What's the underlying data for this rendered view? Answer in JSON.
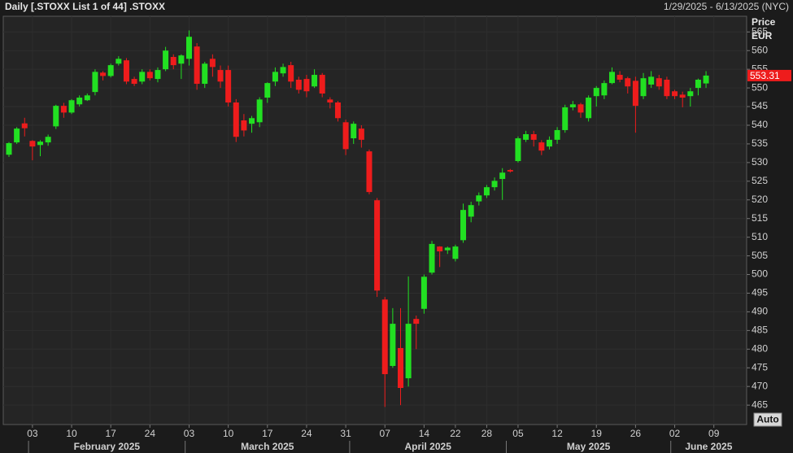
{
  "chart_data": {
    "type": "candlestick",
    "title": "Daily [.STOXX List 1 of 44] .STOXX",
    "date_range": "1/29/2025 - 6/13/2025 (NYC)",
    "y_axis_label": "Price",
    "y_axis_unit": "EUR",
    "auto_button": "Auto",
    "up_color": "#22e022",
    "down_color": "#ee1c1c",
    "grid": true,
    "categories": [
      "2025-01-29",
      "2025-01-30",
      "2025-01-31",
      "2025-02-03",
      "2025-02-04",
      "2025-02-05",
      "2025-02-06",
      "2025-02-07",
      "2025-02-10",
      "2025-02-11",
      "2025-02-12",
      "2025-02-13",
      "2025-02-14",
      "2025-02-17",
      "2025-02-18",
      "2025-02-19",
      "2025-02-20",
      "2025-02-21",
      "2025-02-24",
      "2025-02-25",
      "2025-02-26",
      "2025-02-27",
      "2025-02-28",
      "2025-03-03",
      "2025-03-04",
      "2025-03-05",
      "2025-03-06",
      "2025-03-07",
      "2025-03-10",
      "2025-03-11",
      "2025-03-12",
      "2025-03-13",
      "2025-03-14",
      "2025-03-17",
      "2025-03-18",
      "2025-03-19",
      "2025-03-20",
      "2025-03-21",
      "2025-03-24",
      "2025-03-25",
      "2025-03-26",
      "2025-03-27",
      "2025-03-28",
      "2025-03-31",
      "2025-04-01",
      "2025-04-02",
      "2025-04-03",
      "2025-04-04",
      "2025-04-07",
      "2025-04-08",
      "2025-04-09",
      "2025-04-10",
      "2025-04-11",
      "2025-04-14",
      "2025-04-15",
      "2025-04-16",
      "2025-04-17",
      "2025-04-22",
      "2025-04-23",
      "2025-04-24",
      "2025-04-25",
      "2025-04-28",
      "2025-04-29",
      "2025-04-30",
      "2025-05-02",
      "2025-05-05",
      "2025-05-06",
      "2025-05-07",
      "2025-05-08",
      "2025-05-09",
      "2025-05-12",
      "2025-05-13",
      "2025-05-14",
      "2025-05-15",
      "2025-05-16",
      "2025-05-19",
      "2025-05-20",
      "2025-05-21",
      "2025-05-22",
      "2025-05-23",
      "2025-05-26",
      "2025-05-27",
      "2025-05-28",
      "2025-05-29",
      "2025-05-30",
      "2025-06-02",
      "2025-06-03",
      "2025-06-04",
      "2025-06-05",
      "2025-06-06"
    ],
    "open": [
      532.1,
      535.4,
      540.5,
      535.8,
      534.7,
      535.4,
      539.7,
      545.2,
      543.4,
      545.6,
      546.7,
      548.9,
      554.1,
      553.2,
      556.5,
      557.4,
      552.4,
      551.7,
      554.3,
      552.4,
      555.0,
      558.3,
      556.5,
      557.8,
      561.1,
      551.1,
      557.8,
      554.8,
      554.8,
      546.1,
      541.3,
      540.4,
      540.8,
      547.4,
      551.7,
      553.9,
      556.1,
      552.2,
      552.4,
      550.4,
      553.5,
      546.9,
      546.1,
      540.8,
      536.5,
      539.1,
      533.0,
      519.9,
      493.3,
      475.5,
      480.3,
      472.2,
      488.1,
      490.8,
      500.5,
      507.5,
      506.5,
      504.2,
      509.2,
      515.5,
      519.6,
      521.2,
      523.4,
      525.6,
      528.0,
      530.4,
      536.1,
      537.6,
      535.4,
      534.3,
      536.1,
      538.7,
      544.8,
      545.6,
      541.9,
      547.8,
      548.0,
      551.3,
      553.5,
      552.6,
      551.9,
      547.8,
      550.9,
      552.6,
      552.2,
      549.1,
      548.2,
      547.8,
      550.0,
      551.2
    ],
    "high": [
      535.5,
      539.5,
      542,
      536,
      536,
      537.5,
      545.5,
      546,
      547,
      548,
      548.5,
      555,
      554.5,
      556.5,
      558.5,
      558,
      553,
      555,
      555,
      555.5,
      561,
      559,
      559,
      565.4,
      562,
      557,
      559,
      556,
      556,
      547,
      543,
      542.5,
      547.5,
      551.5,
      555.5,
      556.5,
      557,
      553,
      553.5,
      555,
      554,
      547.5,
      546.5,
      541.5,
      541,
      540,
      533.5,
      520.5,
      494,
      491,
      491,
      499.5,
      489,
      500,
      509,
      507.6,
      507.5,
      508,
      519,
      519.5,
      522,
      524,
      526,
      528.5,
      528.3,
      537,
      538.5,
      538.5,
      536,
      537,
      539.5,
      545.5,
      546.5,
      546,
      548,
      550.5,
      552,
      555.5,
      554.5,
      553,
      553,
      554,
      554.5,
      553.5,
      553,
      549.5,
      549,
      550,
      552.5,
      554.5
    ],
    "low": [
      531.5,
      535,
      537,
      530.6,
      531.7,
      534.5,
      539,
      542,
      543,
      545,
      546.5,
      548,
      552,
      552.8,
      556,
      551,
      550.5,
      551,
      552,
      551.5,
      554.5,
      555,
      552.4,
      556,
      549.5,
      550,
      553,
      550,
      545,
      535.5,
      537,
      538,
      539.5,
      546,
      550.5,
      553,
      550,
      548.5,
      547.5,
      550,
      547.5,
      544.5,
      541,
      532,
      535,
      534,
      521.5,
      494,
      464.5,
      475,
      465,
      470,
      480,
      489.5,
      500,
      502,
      505.5,
      503.5,
      508.5,
      514,
      518.5,
      520.5,
      522.5,
      520,
      527.3,
      530,
      535.5,
      534.3,
      532,
      533.5,
      535,
      538,
      544,
      542,
      541,
      545,
      547,
      551,
      551.5,
      548.5,
      538,
      547,
      550,
      549.5,
      547,
      547,
      544.8,
      545,
      548,
      550
    ],
    "close": [
      535.2,
      539.1,
      539.2,
      534.3,
      535.6,
      536.9,
      545.2,
      543.4,
      546.7,
      547.4,
      548.0,
      554.3,
      553.2,
      556.1,
      557.8,
      551.7,
      551.1,
      554.3,
      552.6,
      554.8,
      560.0,
      556.1,
      558.7,
      563.7,
      551.1,
      556.5,
      555.6,
      551.7,
      546.1,
      536.9,
      538.6,
      541.9,
      546.9,
      551.3,
      554.3,
      555.6,
      551.7,
      549.5,
      549.1,
      553.5,
      548.5,
      546.1,
      541.9,
      533.6,
      540.4,
      536.1,
      522.1,
      495.7,
      473.3,
      486.8,
      469.6,
      486.8,
      486.8,
      499.4,
      508.2,
      506.2,
      507.2,
      507.5,
      517.3,
      518.6,
      521.2,
      523.4,
      525.1,
      527.3,
      527.6,
      536.5,
      537.6,
      536.1,
      533.2,
      536.1,
      538.7,
      544.8,
      545.6,
      543.4,
      547.4,
      550.0,
      551.3,
      554.3,
      552.2,
      550.4,
      545.2,
      552.6,
      553.0,
      550.4,
      547.8,
      547.8,
      547.4,
      549.1,
      552.2,
      553.31
    ],
    "ylim": [
      459.8,
      569.2
    ],
    "yticks": [
      465,
      470,
      475,
      480,
      485,
      490,
      495,
      500,
      505,
      510,
      515,
      520,
      525,
      530,
      535,
      540,
      545,
      550,
      555,
      560,
      565
    ],
    "xticks": [
      {
        "value": "2025-02-03",
        "label": "03"
      },
      {
        "value": "2025-02-10",
        "label": "10"
      },
      {
        "value": "2025-02-17",
        "label": "17"
      },
      {
        "value": "2025-02-24",
        "label": "24"
      },
      {
        "value": "2025-03-03",
        "label": "03"
      },
      {
        "value": "2025-03-10",
        "label": "10"
      },
      {
        "value": "2025-03-17",
        "label": "17"
      },
      {
        "value": "2025-03-24",
        "label": "24"
      },
      {
        "value": "2025-03-31",
        "label": "31"
      },
      {
        "value": "2025-04-07",
        "label": "07"
      },
      {
        "value": "2025-04-14",
        "label": "14"
      },
      {
        "value": "2025-04-22",
        "label": "22"
      },
      {
        "value": "2025-04-28",
        "label": "28"
      },
      {
        "value": "2025-05-05",
        "label": "05"
      },
      {
        "value": "2025-05-12",
        "label": "12"
      },
      {
        "value": "2025-05-19",
        "label": "19"
      },
      {
        "value": "2025-05-26",
        "label": "26"
      },
      {
        "value": "2025-06-02",
        "label": "02"
      },
      {
        "value": "2025-06-09",
        "label": "09"
      }
    ],
    "months": [
      {
        "value": "2025-02",
        "label": "February 2025"
      },
      {
        "value": "2025-03",
        "label": "March 2025"
      },
      {
        "value": "2025-04",
        "label": "April 2025"
      },
      {
        "value": "2025-05",
        "label": "May 2025"
      },
      {
        "value": "2025-06",
        "label": "June 2025"
      }
    ]
  }
}
